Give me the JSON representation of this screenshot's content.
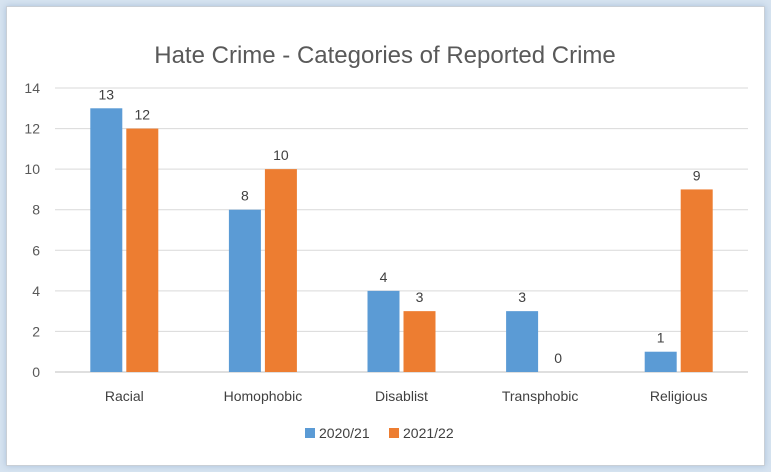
{
  "chart_data": {
    "type": "bar",
    "title": "Hate Crime - Categories of Reported Crime",
    "xlabel": "",
    "ylabel": "",
    "categories": [
      "Racial",
      "Homophobic",
      "Disablist",
      "Transphobic",
      "Religious"
    ],
    "series": [
      {
        "name": "2020/21",
        "values": [
          13,
          8,
          4,
          3,
          1
        ],
        "color": "#5b9bd5"
      },
      {
        "name": "2021/22",
        "values": [
          12,
          10,
          3,
          0,
          9
        ],
        "color": "#ed7d31"
      }
    ],
    "ylim": [
      0,
      14
    ],
    "yticks": [
      0,
      2,
      4,
      6,
      8,
      10,
      12,
      14
    ],
    "grid": true,
    "legend": "bottom",
    "data_labels": true
  }
}
